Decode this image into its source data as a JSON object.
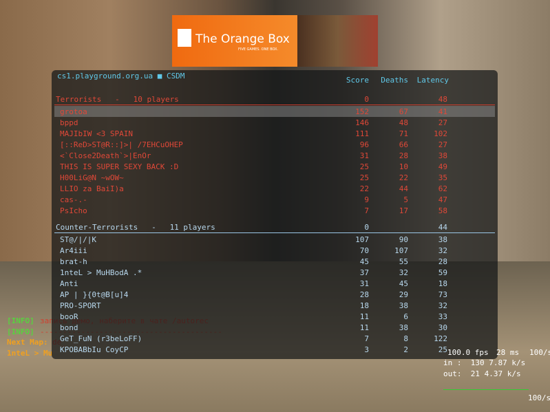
{
  "banner": {
    "title": "The Orange Box",
    "tagline": "FIVE GAMES. ONE BOX."
  },
  "scoreboard": {
    "server": "cs1.playground.org.ua ■ CSDM",
    "columns": [
      "Score",
      "Deaths",
      "Latency"
    ],
    "teams": [
      {
        "name": "Terrorists   -   10 players",
        "score": 0,
        "latency": 48,
        "players": [
          [
            "grotoa",
            152,
            67,
            41
          ],
          [
            "bppd",
            146,
            48,
            27
          ],
          [
            "MAJIbIW <3 SPAIN",
            111,
            71,
            102
          ],
          [
            "[::ReD>ST@R::]>| /7EHCuOHEP",
            96,
            66,
            27
          ],
          [
            "<`Close2Death`>|EnOr",
            31,
            28,
            38
          ],
          [
            "THIS IS SUPER SEXY BACK :D",
            25,
            10,
            49
          ],
          [
            "H00LiG@N ~wOW~",
            25,
            22,
            35
          ],
          [
            "LLIO za BaiI)a",
            22,
            44,
            62
          ],
          [
            "cas-.-",
            9,
            5,
            47
          ],
          [
            "PsIcho",
            7,
            17,
            58
          ]
        ]
      },
      {
        "name": "Counter-Terrorists   -   11 players",
        "score": 0,
        "latency": 44,
        "players": [
          [
            "ST@/|/|K",
            107,
            90,
            38
          ],
          [
            "Ar4iii",
            70,
            107,
            32
          ],
          [
            "brat-h",
            45,
            55,
            28
          ],
          [
            "1nteL > MuHBodA .*",
            37,
            32,
            59
          ],
          [
            "Anti",
            31,
            45,
            18
          ],
          [
            "AP | }{0t@B[u]4",
            28,
            29,
            73
          ],
          [
            "PRO-SPORT",
            18,
            38,
            32
          ],
          [
            "booR",
            11,
            6,
            33
          ],
          [
            "bond",
            11,
            38,
            30
          ],
          [
            "GeT_FuN (r3beLoFF)",
            7,
            8,
            122
          ],
          [
            "KPOBABbIu CoyCP",
            3,
            2,
            25
          ]
        ]
      }
    ]
  },
  "chat": [
    [
      "[INFO]",
      "запись демо, наберите в чате /autorec"
    ],
    [
      "[INFO]",
      "----------------------------------------"
    ],
    [
      "Next Map:",
      "de_"
    ],
    [
      "1nteL > Mu",
      ""
    ]
  ],
  "netgraph": {
    "fps": "100.0 fps",
    "ms": "28 ms",
    "rate": "100/s",
    "in": "in :  130 7.87 k/s",
    "out": "out:  21 4.37 k/s",
    "rate2": "100/s"
  }
}
